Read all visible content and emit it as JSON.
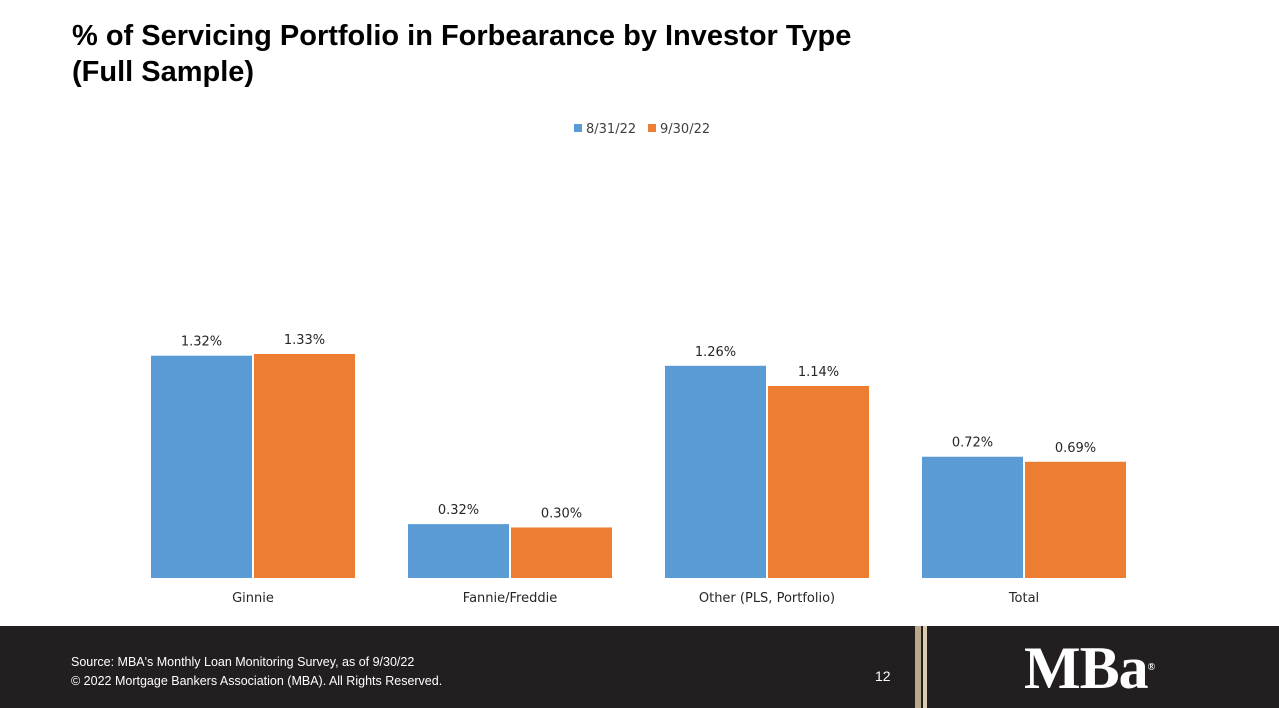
{
  "slide": {
    "title_line1": "% of Servicing Portfolio in Forbearance by Investor Type",
    "title_line2": "(Full Sample)",
    "page_number": "12"
  },
  "footer": {
    "source": "Source: MBA's Monthly Loan Monitoring Survey, as of 9/30/22",
    "copyright": "© 2022 Mortgage Bankers Association (MBA). All Rights Reserved.",
    "logo_text": "MBa",
    "logo_mark": "®"
  },
  "chart_data": {
    "type": "bar",
    "title": "",
    "categories": [
      "Ginnie",
      "Fannie/Freddie",
      "Other (PLS, Portfolio)",
      "Total"
    ],
    "series": [
      {
        "name": "8/31/22",
        "color": "#5b9bd5",
        "values": [
          1.32,
          0.32,
          1.26,
          0.72
        ],
        "labels": [
          "1.32%",
          "0.32%",
          "1.26%",
          "0.72%"
        ]
      },
      {
        "name": "9/30/22",
        "color": "#ed7d31",
        "values": [
          1.33,
          0.3,
          1.14,
          0.69
        ],
        "labels": [
          "1.33%",
          "0.30%",
          "1.14%",
          "0.69%"
        ]
      }
    ],
    "xlabel": "",
    "ylabel": "",
    "ylim": [
      0,
      1.33
    ],
    "legend_position": "top-center",
    "grid": false
  }
}
